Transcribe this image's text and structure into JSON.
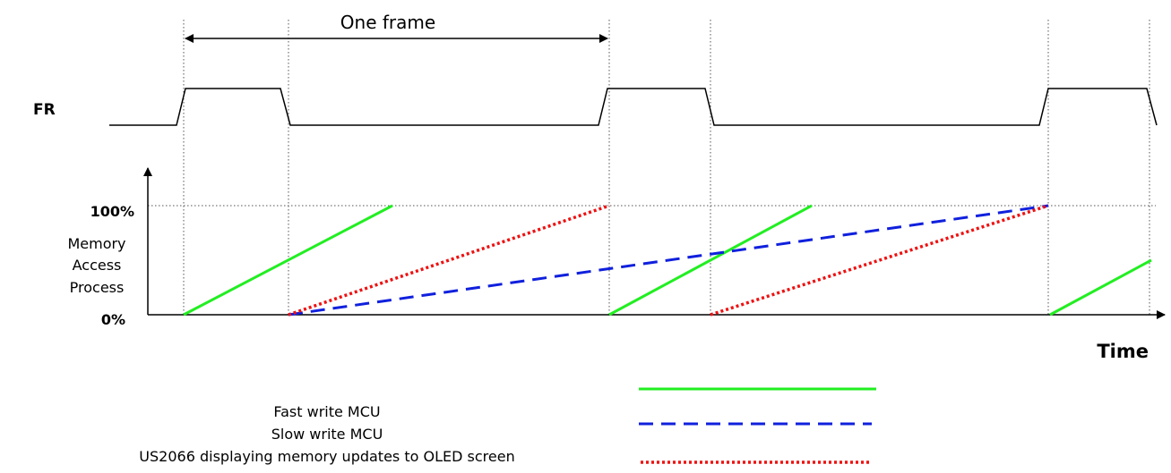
{
  "labels": {
    "one_frame": "One frame",
    "fr": "FR",
    "y_top": "100%",
    "y_bottom": "0%",
    "y_axis_line1": "Memory",
    "y_axis_line2": "Access",
    "y_axis_line3": "Process",
    "x_axis": "Time"
  },
  "legend": [
    {
      "label": "Fast write MCU",
      "color": "#22ee22",
      "style": "solid"
    },
    {
      "label": "Slow write MCU",
      "color": "#1020dd",
      "style": "dashed"
    },
    {
      "label": "US2066 displaying memory updates to OLED screen",
      "color": "#ee1111",
      "style": "dotted"
    }
  ]
}
